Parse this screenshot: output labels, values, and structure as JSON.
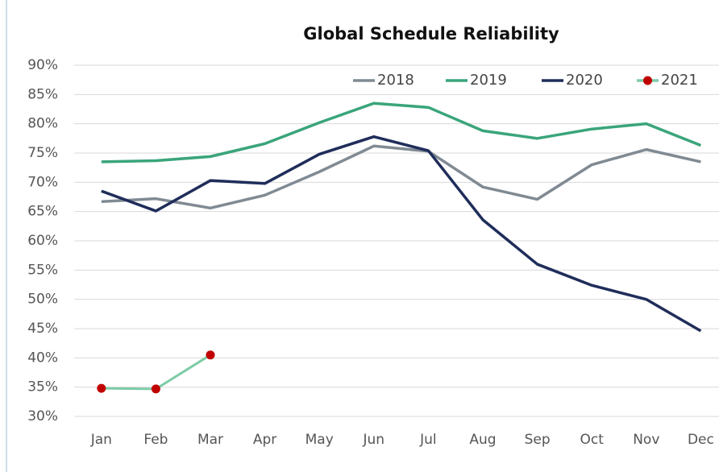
{
  "chart_data": {
    "type": "line",
    "title": "Global Schedule Reliability",
    "categories": [
      "Jan",
      "Feb",
      "Mar",
      "Apr",
      "May",
      "Jun",
      "Jul",
      "Aug",
      "Sep",
      "Oct",
      "Nov",
      "Dec"
    ],
    "series": [
      {
        "name": "2018",
        "color": "#808a93",
        "values": [
          66.7,
          67.2,
          65.6,
          67.8,
          71.8,
          76.2,
          75.3,
          69.2,
          67.1,
          73.0,
          75.6,
          73.5
        ]
      },
      {
        "name": "2019",
        "color": "#3aa57a",
        "values": [
          73.5,
          73.7,
          74.4,
          76.6,
          80.2,
          83.5,
          82.8,
          78.8,
          77.5,
          79.1,
          80.0,
          76.3
        ]
      },
      {
        "name": "2020",
        "color": "#1f2d5a",
        "values": [
          68.5,
          65.1,
          70.3,
          69.8,
          74.8,
          77.8,
          75.4,
          63.6,
          56.0,
          52.4,
          50.0,
          44.6
        ]
      },
      {
        "name": "2021",
        "color": "#7ecba7",
        "marker_color": "#c00000",
        "values": [
          34.8,
          34.7,
          40.5,
          null,
          null,
          null,
          null,
          null,
          null,
          null,
          null,
          null
        ]
      }
    ],
    "ylim": [
      30,
      90
    ],
    "yticks": [
      {
        "value": 30,
        "label": "30%"
      },
      {
        "value": 35,
        "label": "35%"
      },
      {
        "value": 40,
        "label": "40%"
      },
      {
        "value": 45,
        "label": "45%"
      },
      {
        "value": 50,
        "label": "50%"
      },
      {
        "value": 55,
        "label": "55%"
      },
      {
        "value": 60,
        "label": "60%"
      },
      {
        "value": 65,
        "label": "65%"
      },
      {
        "value": 70,
        "label": "70%"
      },
      {
        "value": 75,
        "label": "75%"
      },
      {
        "value": 80,
        "label": "80%"
      },
      {
        "value": 85,
        "label": "85%"
      },
      {
        "value": 90,
        "label": "90%"
      }
    ],
    "grid": true,
    "legend": "top-right"
  }
}
